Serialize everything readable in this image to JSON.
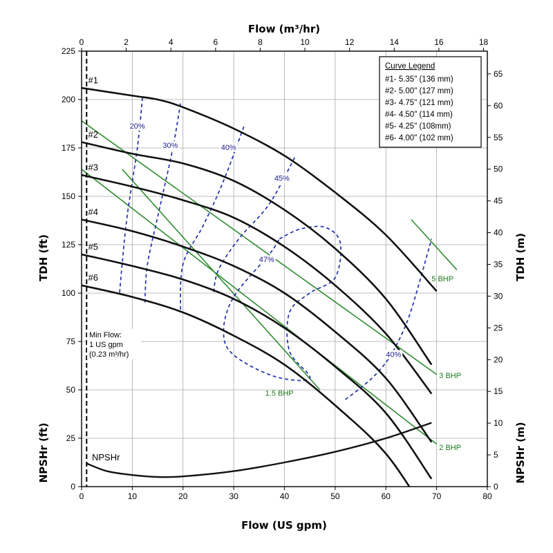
{
  "chart_data": {
    "type": "line",
    "xlabel_bottom": "Flow (US gpm)",
    "xlabel_top": "Flow (m³/hr)",
    "ylabel_left_upper": "TDH (ft)",
    "ylabel_left_lower": "NPSHr (ft)",
    "ylabel_right_upper": "TDH (m)",
    "ylabel_right_lower": "NPSHr (m)",
    "xlim": [
      0,
      80
    ],
    "ylim": [
      0,
      225
    ],
    "x_ticks": [
      "0",
      "10",
      "20",
      "30",
      "40",
      "50",
      "60",
      "70",
      "80"
    ],
    "x_top_ticks": [
      "0",
      "2",
      "4",
      "6",
      "8",
      "10",
      "12",
      "14",
      "16",
      "18"
    ],
    "y_ticks": [
      "0",
      "25",
      "50",
      "75",
      "100",
      "125",
      "150",
      "175",
      "200",
      "225"
    ],
    "y_right_ticks": [
      "0",
      "5",
      "10",
      "15",
      "20",
      "25",
      "30",
      "35",
      "40",
      "45",
      "50",
      "55",
      "60",
      "65"
    ],
    "legend": {
      "title": "Curve Legend",
      "entries": [
        "#1- 5.35\" (136 mm)",
        "#2- 5.00\" (127 mm)",
        "#3- 4.75\" (121 mm)",
        "#4- 4.50\" (114 mm)",
        "#5- 4.25\" (108mm)",
        "#6- 4.00\" (102 mm)"
      ]
    },
    "series": [
      {
        "name": "#1",
        "x": [
          0,
          10,
          15,
          20,
          30,
          40,
          50,
          60,
          70
        ],
        "y": [
          206,
          202,
          200,
          196,
          185,
          171,
          152,
          130,
          101
        ]
      },
      {
        "name": "#2",
        "x": [
          0,
          10,
          20,
          30,
          40,
          50,
          60,
          69
        ],
        "y": [
          178,
          172,
          167,
          158,
          143,
          123,
          97,
          63
        ]
      },
      {
        "name": "#3",
        "x": [
          0,
          10,
          20,
          30,
          40,
          50,
          60,
          69
        ],
        "y": [
          161,
          155,
          148,
          139,
          124,
          104,
          79,
          48
        ]
      },
      {
        "name": "#4",
        "x": [
          0,
          10,
          20,
          30,
          40,
          50,
          60,
          69
        ],
        "y": [
          138,
          132,
          124,
          114,
          100,
          80,
          56,
          23
        ]
      },
      {
        "name": "#5",
        "x": [
          0,
          10,
          20,
          30,
          40,
          50,
          60,
          69
        ],
        "y": [
          120,
          114,
          107,
          97,
          82,
          62,
          38,
          4
        ]
      },
      {
        "name": "#6",
        "x": [
          0,
          10,
          20,
          30,
          40,
          50,
          60,
          68
        ],
        "y": [
          104,
          98,
          90,
          78,
          63,
          42,
          17,
          -14
        ]
      },
      {
        "name": "NPSHr",
        "x": [
          1,
          5,
          10,
          15,
          20,
          30,
          40,
          50,
          60,
          69
        ],
        "y": [
          12,
          8,
          6,
          5,
          5.3,
          8,
          12.5,
          18,
          25,
          33
        ]
      }
    ],
    "power_lines": [
      {
        "label": "5 BHP",
        "x": [
          65,
          74
        ],
        "y": [
          138,
          112
        ]
      },
      {
        "label": "3 BHP",
        "x": [
          0,
          70
        ],
        "y": [
          189,
          58
        ]
      },
      {
        "label": "2 BHP",
        "x": [
          0,
          70
        ],
        "y": [
          164,
          22
        ]
      },
      {
        "label": "1.5 BHP",
        "x": [
          8,
          47
        ],
        "y": [
          164,
          50
        ]
      }
    ],
    "efficiency_contours": [
      {
        "label": "20%",
        "x": [
          12,
          11,
          9,
          8,
          7.5
        ],
        "y": [
          201,
          175,
          140,
          115,
          100
        ]
      },
      {
        "label": "30%",
        "x": [
          19.5,
          18,
          15.5,
          13,
          12.5
        ],
        "y": [
          198,
          175,
          145,
          115,
          95
        ]
      },
      {
        "label": "40%",
        "x": [
          32,
          28,
          24,
          20,
          19.5
        ],
        "y": [
          186,
          158,
          135,
          115,
          90
        ]
      },
      {
        "label": "45%",
        "x": [
          42,
          37,
          31,
          27,
          26
        ],
        "y": [
          170,
          146,
          128,
          112,
          100
        ]
      },
      {
        "label": "47%",
        "x": [
          39,
          43,
          48,
          51,
          50,
          45,
          41,
          41,
          45,
          38,
          30,
          28,
          30,
          37,
          39
        ],
        "y": [
          128,
          133,
          134,
          126,
          108,
          100,
          90,
          70,
          56,
          57,
          68,
          80,
          98,
          120,
          128
        ]
      },
      {
        "label": "40%",
        "x": [
          52,
          55,
          58,
          61,
          64,
          66,
          69
        ],
        "y": [
          45,
          51,
          58,
          68,
          84,
          100,
          128
        ]
      }
    ],
    "annotations": [
      "Min Flow:",
      "1 US gpm",
      "(0.23 m³/hr)",
      "NPSHr"
    ]
  }
}
